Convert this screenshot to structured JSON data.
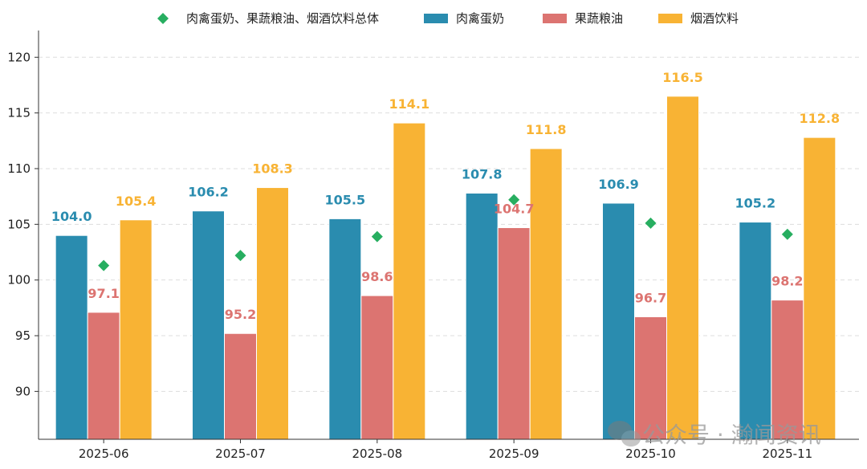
{
  "chart_data": {
    "type": "bar",
    "title": "",
    "xlabel": "",
    "ylabel": "",
    "categories": [
      "2025-06",
      "2025-07",
      "2025-08",
      "2025-09",
      "2025-10",
      "2025-11"
    ],
    "ylim": [
      85.7,
      122.4
    ],
    "yticks": [
      90,
      95,
      100,
      105,
      110,
      115,
      120
    ],
    "grid": "horizontal dashed",
    "legend_position": "top",
    "series": [
      {
        "name": "肉禽蛋奶",
        "type": "bar",
        "color": "#2a8caf",
        "values": [
          104.0,
          106.2,
          105.5,
          107.8,
          106.9,
          105.2
        ]
      },
      {
        "name": "果蔬粮油",
        "type": "bar",
        "color": "#dc7471",
        "values": [
          97.1,
          95.2,
          98.6,
          104.7,
          96.7,
          98.2
        ]
      },
      {
        "name": "烟酒饮料",
        "type": "bar",
        "color": "#f8b334",
        "values": [
          105.4,
          108.3,
          114.1,
          111.8,
          116.5,
          112.8
        ]
      },
      {
        "name": "肉禽蛋奶、果蔬粮油、烟酒饮料总体",
        "type": "scatter",
        "marker": "diamond",
        "color": "#27ae60",
        "values": [
          101.3,
          102.2,
          103.9,
          107.2,
          105.1,
          104.1
        ]
      }
    ]
  },
  "watermark": "公众号 · 瀚闻资讯"
}
